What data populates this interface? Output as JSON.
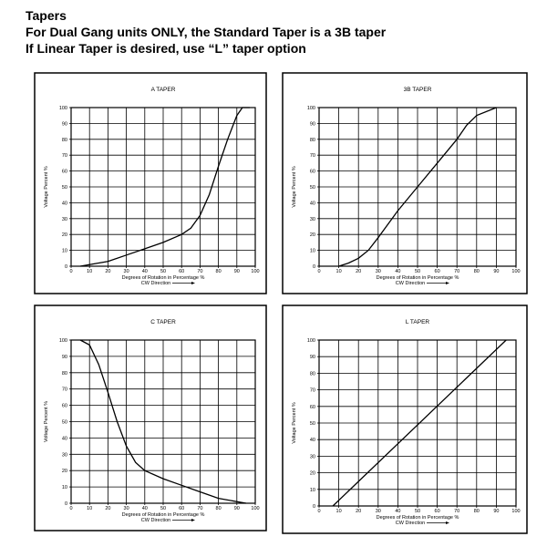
{
  "header": {
    "lines": [
      "Tapers",
      "For Dual Gang units ONLY, the Standard Taper is a 3B taper",
      "If Linear Taper is desired, use “L” taper option"
    ]
  },
  "chart_data": [
    {
      "type": "line",
      "title": "A TAPER",
      "x_label": "Degrees of Rotation in Percentage %",
      "x_sublabel": "CW Direction",
      "y_label": "Voltage Percent %",
      "x": [
        5,
        10,
        20,
        30,
        40,
        50,
        60,
        65,
        70,
        75,
        80,
        85,
        90,
        93,
        97
      ],
      "values": [
        0,
        1,
        3,
        7,
        11,
        15,
        20,
        24,
        32,
        45,
        63,
        80,
        95,
        100,
        100
      ],
      "color": "#000000",
      "xlim": [
        0,
        100
      ],
      "ylim": [
        0,
        100
      ],
      "xticks": [
        0,
        10,
        20,
        30,
        40,
        50,
        60,
        70,
        80,
        90,
        100
      ],
      "yticks": [
        0,
        10,
        20,
        30,
        40,
        50,
        60,
        70,
        80,
        90,
        100
      ],
      "grid": true
    },
    {
      "type": "line",
      "title": "3B TAPER",
      "x_label": "Degrees of Rotation in Percentage %",
      "x_sublabel": "CW Direction",
      "y_label": "Voltage Percent %",
      "x": [
        10,
        15,
        20,
        25,
        30,
        40,
        50,
        60,
        70,
        75,
        80,
        90
      ],
      "values": [
        0,
        2,
        5,
        10,
        18,
        35,
        50,
        65,
        80,
        89,
        95,
        100
      ],
      "color": "#000000",
      "xlim": [
        0,
        100
      ],
      "ylim": [
        0,
        100
      ],
      "xticks": [
        0,
        10,
        20,
        30,
        40,
        50,
        60,
        70,
        80,
        90,
        100
      ],
      "yticks": [
        0,
        10,
        20,
        30,
        40,
        50,
        60,
        70,
        80,
        90,
        100
      ],
      "grid": true
    },
    {
      "type": "line",
      "title": "C TAPER",
      "x_label": "Degrees of Rotation in Percentage %",
      "x_sublabel": "CW Direction",
      "y_label": "Voltage Percent %",
      "x": [
        5,
        10,
        15,
        20,
        25,
        30,
        35,
        40,
        50,
        60,
        70,
        80,
        90,
        95
      ],
      "values": [
        100,
        97,
        85,
        68,
        50,
        35,
        25,
        20,
        15,
        11,
        7,
        3,
        1,
        0
      ],
      "color": "#000000",
      "xlim": [
        0,
        100
      ],
      "ylim": [
        0,
        100
      ],
      "xticks": [
        0,
        10,
        20,
        30,
        40,
        50,
        60,
        70,
        80,
        90,
        100
      ],
      "yticks": [
        0,
        10,
        20,
        30,
        40,
        50,
        60,
        70,
        80,
        90,
        100
      ],
      "grid": true
    },
    {
      "type": "line",
      "title": "L TAPER",
      "x_label": "Degrees of Rotation in Percentage %",
      "x_sublabel": "CW Direction",
      "y_label": "Voltage Percent %",
      "x": [
        7,
        95
      ],
      "values": [
        0,
        100
      ],
      "color": "#000000",
      "xlim": [
        0,
        100
      ],
      "ylim": [
        0,
        100
      ],
      "xticks": [
        0,
        10,
        20,
        30,
        40,
        50,
        60,
        70,
        80,
        90,
        100
      ],
      "yticks": [
        0,
        10,
        20,
        30,
        40,
        50,
        60,
        70,
        80,
        90,
        100
      ],
      "grid": true
    }
  ]
}
